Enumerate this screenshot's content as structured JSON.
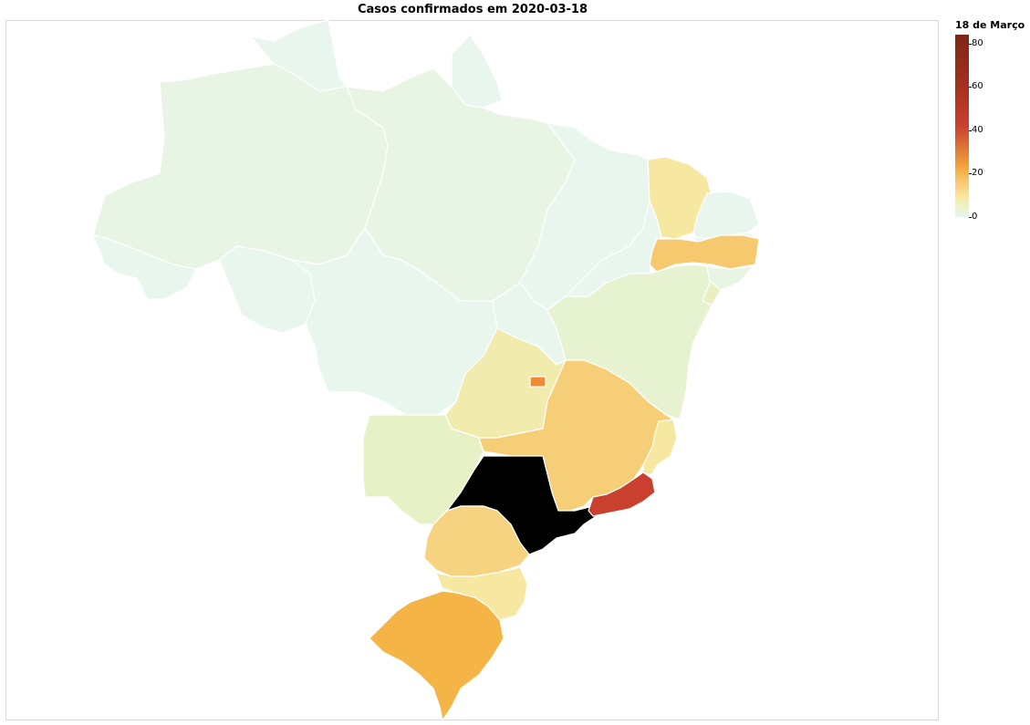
{
  "title": "Casos confirmados em 2020-03-18",
  "legend": {
    "title": "18 de Março",
    "ticks": [
      "80",
      "60",
      "40",
      "20",
      "0"
    ],
    "min": 0,
    "max": 84
  },
  "colors": {
    "near_zero": "#e8f6ee",
    "low": "#e6f2c6",
    "medium": "#f6d888",
    "high": "#c9402f",
    "max": "#000000"
  },
  "states": [
    {
      "id": "AM",
      "cases": 1
    },
    {
      "id": "AC",
      "cases": 0
    },
    {
      "id": "RO",
      "cases": 0
    },
    {
      "id": "RR",
      "cases": 0
    },
    {
      "id": "PA",
      "cases": 1
    },
    {
      "id": "AP",
      "cases": 0
    },
    {
      "id": "MA",
      "cases": 0
    },
    {
      "id": "TO",
      "cases": 0
    },
    {
      "id": "MT",
      "cases": 0
    },
    {
      "id": "PI",
      "cases": 0
    },
    {
      "id": "CE",
      "cases": 10
    },
    {
      "id": "RN",
      "cases": 0
    },
    {
      "id": "PB",
      "cases": 0
    },
    {
      "id": "PE",
      "cases": 16
    },
    {
      "id": "AL",
      "cases": 1
    },
    {
      "id": "SE",
      "cases": 5
    },
    {
      "id": "BA",
      "cases": 3
    },
    {
      "id": "GO",
      "cases": 8
    },
    {
      "id": "DF",
      "cases": 26
    },
    {
      "id": "MG",
      "cases": 15
    },
    {
      "id": "ES",
      "cases": 10
    },
    {
      "id": "MS",
      "cases": 4
    },
    {
      "id": "SP",
      "cases": 84
    },
    {
      "id": "RJ",
      "cases": 45
    },
    {
      "id": "PR",
      "cases": 14
    },
    {
      "id": "SC",
      "cases": 10
    },
    {
      "id": "RS",
      "cases": 20
    }
  ]
}
